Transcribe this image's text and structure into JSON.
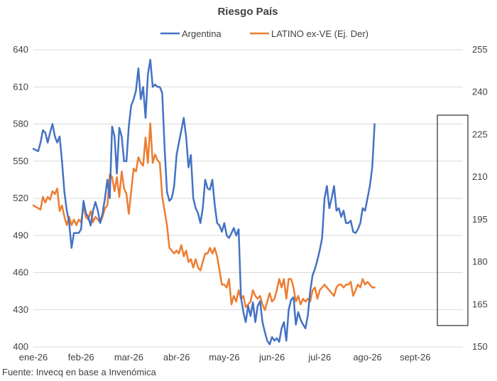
{
  "chart_data": {
    "type": "line",
    "title": "Riesgo País",
    "legend_position": "top",
    "grid": true,
    "x_tick_labels": [
      "ene-26",
      "feb-26",
      "mar-26",
      "abr-26",
      "may-26",
      "jun-26",
      "jul-26",
      "ago-26",
      "sept-26"
    ],
    "y_left": {
      "lim": [
        400,
        640
      ],
      "ticks": [
        400,
        430,
        460,
        490,
        520,
        550,
        580,
        610,
        640
      ]
    },
    "y_right": {
      "lim": [
        150,
        255
      ],
      "ticks": [
        150,
        165,
        180,
        195,
        210,
        225,
        240,
        255
      ]
    },
    "series": [
      {
        "name": "Argentina",
        "axis": "left",
        "color": "#4472C4",
        "points": [
          [
            0.0,
            560
          ],
          [
            0.05,
            559
          ],
          [
            0.1,
            558
          ],
          [
            0.15,
            565
          ],
          [
            0.2,
            575
          ],
          [
            0.25,
            573
          ],
          [
            0.3,
            565
          ],
          [
            0.35,
            573
          ],
          [
            0.4,
            580
          ],
          [
            0.45,
            570
          ],
          [
            0.5,
            565
          ],
          [
            0.55,
            570
          ],
          [
            0.6,
            550
          ],
          [
            0.65,
            525
          ],
          [
            0.7,
            510
          ],
          [
            0.75,
            500
          ],
          [
            0.8,
            480
          ],
          [
            0.85,
            492
          ],
          [
            0.9,
            492
          ],
          [
            0.95,
            492
          ],
          [
            1.0,
            495
          ],
          [
            1.05,
            518
          ],
          [
            1.1,
            508
          ],
          [
            1.15,
            505
          ],
          [
            1.2,
            498
          ],
          [
            1.25,
            510
          ],
          [
            1.3,
            517
          ],
          [
            1.35,
            510
          ],
          [
            1.4,
            500
          ],
          [
            1.45,
            508
          ],
          [
            1.5,
            520
          ],
          [
            1.55,
            535
          ],
          [
            1.6,
            520
          ],
          [
            1.65,
            578
          ],
          [
            1.7,
            570
          ],
          [
            1.75,
            540
          ],
          [
            1.8,
            577
          ],
          [
            1.85,
            570
          ],
          [
            1.9,
            550
          ],
          [
            1.95,
            550
          ],
          [
            2.0,
            578
          ],
          [
            2.05,
            595
          ],
          [
            2.1,
            600
          ],
          [
            2.15,
            607
          ],
          [
            2.2,
            625
          ],
          [
            2.25,
            600
          ],
          [
            2.3,
            610
          ],
          [
            2.35,
            585
          ],
          [
            2.4,
            620
          ],
          [
            2.45,
            632
          ],
          [
            2.5,
            610
          ],
          [
            2.55,
            612
          ],
          [
            2.6,
            610
          ],
          [
            2.65,
            610
          ],
          [
            2.7,
            605
          ],
          [
            2.75,
            560
          ],
          [
            2.8,
            525
          ],
          [
            2.85,
            518
          ],
          [
            2.9,
            520
          ],
          [
            2.95,
            530
          ],
          [
            3.0,
            555
          ],
          [
            3.05,
            565
          ],
          [
            3.1,
            575
          ],
          [
            3.15,
            585
          ],
          [
            3.2,
            570
          ],
          [
            3.25,
            545
          ],
          [
            3.3,
            555
          ],
          [
            3.35,
            520
          ],
          [
            3.4,
            512
          ],
          [
            3.45,
            508
          ],
          [
            3.5,
            500
          ],
          [
            3.55,
            512
          ],
          [
            3.6,
            535
          ],
          [
            3.65,
            528
          ],
          [
            3.7,
            527
          ],
          [
            3.75,
            535
          ],
          [
            3.8,
            515
          ],
          [
            3.85,
            500
          ],
          [
            3.9,
            498
          ],
          [
            3.95,
            493
          ],
          [
            4.0,
            500
          ],
          [
            4.05,
            490
          ],
          [
            4.1,
            488
          ],
          [
            4.15,
            492
          ],
          [
            4.2,
            496
          ],
          [
            4.25,
            490
          ],
          [
            4.3,
            495
          ],
          [
            4.35,
            440
          ],
          [
            4.4,
            428
          ],
          [
            4.45,
            420
          ],
          [
            4.5,
            433
          ],
          [
            4.55,
            425
          ],
          [
            4.6,
            436
          ],
          [
            4.65,
            420
          ],
          [
            4.7,
            433
          ],
          [
            4.75,
            437
          ],
          [
            4.8,
            420
          ],
          [
            4.85,
            412
          ],
          [
            4.9,
            405
          ],
          [
            4.95,
            402
          ],
          [
            5.0,
            408
          ],
          [
            5.05,
            405
          ],
          [
            5.1,
            407
          ],
          [
            5.15,
            404
          ],
          [
            5.2,
            415
          ],
          [
            5.25,
            420
          ],
          [
            5.3,
            405
          ],
          [
            5.35,
            430
          ],
          [
            5.4,
            438
          ],
          [
            5.45,
            440
          ],
          [
            5.5,
            418
          ],
          [
            5.55,
            428
          ],
          [
            5.6,
            422
          ],
          [
            5.65,
            418
          ],
          [
            5.7,
            415
          ],
          [
            5.75,
            425
          ],
          [
            5.8,
            445
          ],
          [
            5.85,
            458
          ],
          [
            5.9,
            463
          ],
          [
            5.95,
            470
          ],
          [
            6.0,
            478
          ],
          [
            6.05,
            488
          ],
          [
            6.1,
            520
          ],
          [
            6.15,
            530
          ],
          [
            6.2,
            512
          ],
          [
            6.25,
            520
          ],
          [
            6.3,
            530
          ],
          [
            6.35,
            510
          ],
          [
            6.4,
            512
          ],
          [
            6.45,
            505
          ],
          [
            6.5,
            510
          ],
          [
            6.55,
            500
          ],
          [
            6.6,
            500
          ],
          [
            6.65,
            502
          ],
          [
            6.7,
            493
          ],
          [
            6.75,
            492
          ],
          [
            6.8,
            495
          ],
          [
            6.85,
            500
          ],
          [
            6.9,
            512
          ],
          [
            6.95,
            510
          ],
          [
            7.0,
            520
          ],
          [
            7.05,
            530
          ],
          [
            7.1,
            545
          ],
          [
            7.15,
            580
          ]
        ]
      },
      {
        "name": "LATINO ex-VE (Ej. Der)",
        "axis": "right",
        "color": "#ED7D31",
        "points": [
          [
            0.0,
            200
          ],
          [
            0.05,
            199.5
          ],
          [
            0.1,
            199
          ],
          [
            0.15,
            198.5
          ],
          [
            0.2,
            203
          ],
          [
            0.25,
            201
          ],
          [
            0.3,
            203
          ],
          [
            0.35,
            202
          ],
          [
            0.4,
            205
          ],
          [
            0.45,
            204
          ],
          [
            0.5,
            206
          ],
          [
            0.55,
            198
          ],
          [
            0.6,
            200
          ],
          [
            0.65,
            196
          ],
          [
            0.7,
            193
          ],
          [
            0.75,
            196
          ],
          [
            0.8,
            193
          ],
          [
            0.85,
            195
          ],
          [
            0.9,
            193
          ],
          [
            0.95,
            195
          ],
          [
            1.0,
            194
          ],
          [
            1.05,
            200
          ],
          [
            1.1,
            196
          ],
          [
            1.15,
            195
          ],
          [
            1.2,
            198
          ],
          [
            1.25,
            194
          ],
          [
            1.3,
            196
          ],
          [
            1.35,
            195
          ],
          [
            1.4,
            194
          ],
          [
            1.45,
            196
          ],
          [
            1.5,
            199
          ],
          [
            1.55,
            200
          ],
          [
            1.6,
            211
          ],
          [
            1.65,
            210
          ],
          [
            1.7,
            205
          ],
          [
            1.75,
            210
          ],
          [
            1.8,
            203
          ],
          [
            1.85,
            212
          ],
          [
            1.9,
            206
          ],
          [
            1.95,
            204
          ],
          [
            2.0,
            197
          ],
          [
            2.05,
            205
          ],
          [
            2.1,
            213
          ],
          [
            2.15,
            212
          ],
          [
            2.2,
            217
          ],
          [
            2.25,
            215
          ],
          [
            2.3,
            214
          ],
          [
            2.35,
            224
          ],
          [
            2.4,
            215
          ],
          [
            2.45,
            229
          ],
          [
            2.5,
            215
          ],
          [
            2.55,
            218
          ],
          [
            2.6,
            216
          ],
          [
            2.65,
            215
          ],
          [
            2.7,
            203
          ],
          [
            2.75,
            198
          ],
          [
            2.8,
            193
          ],
          [
            2.85,
            185
          ],
          [
            2.9,
            184
          ],
          [
            2.95,
            183
          ],
          [
            3.0,
            184
          ],
          [
            3.05,
            183
          ],
          [
            3.1,
            186
          ],
          [
            3.15,
            182
          ],
          [
            3.2,
            184
          ],
          [
            3.25,
            180
          ],
          [
            3.3,
            181
          ],
          [
            3.35,
            178
          ],
          [
            3.4,
            181
          ],
          [
            3.45,
            178
          ],
          [
            3.5,
            177
          ],
          [
            3.55,
            180
          ],
          [
            3.6,
            183
          ],
          [
            3.65,
            183
          ],
          [
            3.7,
            185
          ],
          [
            3.75,
            183
          ],
          [
            3.8,
            185
          ],
          [
            3.85,
            182
          ],
          [
            3.9,
            177
          ],
          [
            3.95,
            172
          ],
          [
            4.0,
            172
          ],
          [
            4.05,
            171
          ],
          [
            4.1,
            174
          ],
          [
            4.15,
            165
          ],
          [
            4.2,
            168
          ],
          [
            4.25,
            166
          ],
          [
            4.3,
            170
          ],
          [
            4.35,
            167
          ],
          [
            4.4,
            168
          ],
          [
            4.45,
            164
          ],
          [
            4.5,
            165
          ],
          [
            4.55,
            166
          ],
          [
            4.6,
            170
          ],
          [
            4.65,
            168
          ],
          [
            4.7,
            167
          ],
          [
            4.75,
            168
          ],
          [
            4.8,
            165
          ],
          [
            4.85,
            163
          ],
          [
            4.9,
            166
          ],
          [
            4.95,
            169
          ],
          [
            5.0,
            166
          ],
          [
            5.05,
            167
          ],
          [
            5.1,
            170
          ],
          [
            5.15,
            174
          ],
          [
            5.2,
            171
          ],
          [
            5.25,
            174
          ],
          [
            5.3,
            167
          ],
          [
            5.35,
            174
          ],
          [
            5.4,
            174
          ],
          [
            5.45,
            171
          ],
          [
            5.5,
            166
          ],
          [
            5.55,
            168
          ],
          [
            5.6,
            165
          ],
          [
            5.65,
            167
          ],
          [
            5.7,
            166
          ],
          [
            5.75,
            167
          ],
          [
            5.8,
            166
          ],
          [
            5.85,
            170
          ],
          [
            5.9,
            171
          ],
          [
            5.95,
            167
          ],
          [
            6.0,
            170
          ],
          [
            6.05,
            171
          ],
          [
            6.1,
            172
          ],
          [
            6.15,
            171
          ],
          [
            6.2,
            170
          ],
          [
            6.25,
            169
          ],
          [
            6.3,
            168
          ],
          [
            6.35,
            171
          ],
          [
            6.4,
            172
          ],
          [
            6.45,
            172
          ],
          [
            6.5,
            171
          ],
          [
            6.55,
            172
          ],
          [
            6.6,
            172
          ],
          [
            6.65,
            173
          ],
          [
            6.7,
            168
          ],
          [
            6.75,
            170
          ],
          [
            6.8,
            172
          ],
          [
            6.85,
            171
          ],
          [
            6.9,
            174
          ],
          [
            6.95,
            172
          ],
          [
            7.0,
            173
          ],
          [
            7.05,
            172
          ],
          [
            7.1,
            171
          ],
          [
            7.15,
            171
          ]
        ]
      }
    ]
  },
  "source": "Fuente: Invecq en base a Invenómica"
}
